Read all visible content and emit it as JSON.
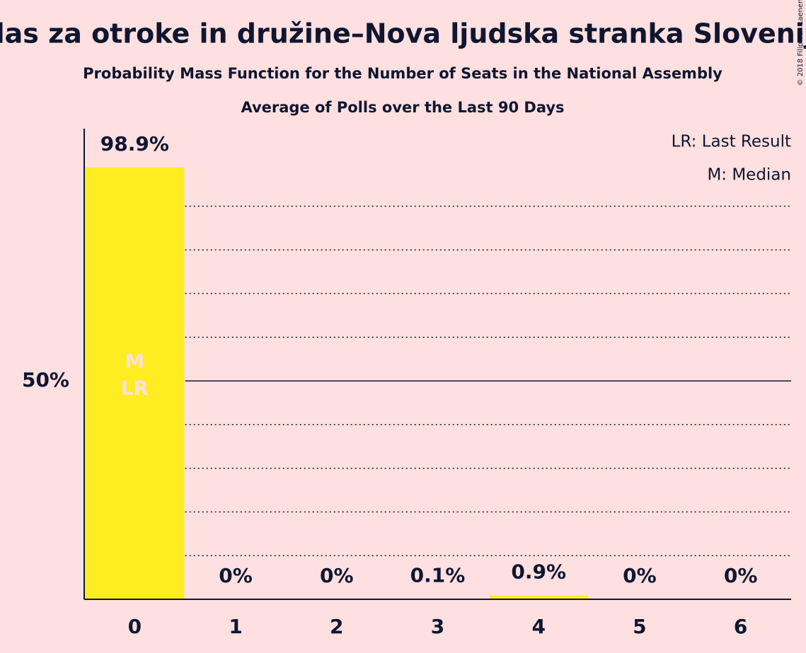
{
  "chart_data": {
    "type": "bar",
    "title": "Glas za otroke in družine–Nova ljudska stranka Slovenije",
    "subtitle": "Probability Mass Function for the Number of Seats in the National Assembly",
    "subtitle2": "Average of Polls over the Last 90 Days",
    "categories": [
      "0",
      "1",
      "2",
      "3",
      "4",
      "5",
      "6"
    ],
    "values": [
      98.9,
      0,
      0,
      0.1,
      0.9,
      0,
      0
    ],
    "value_labels": [
      "98.9%",
      "0%",
      "0%",
      "0.1%",
      "0.9%",
      "0%",
      "0%"
    ],
    "color": "#ffed22",
    "ylim": [
      0,
      100
    ],
    "yticks": [
      {
        "value": 50,
        "label": "50%"
      }
    ],
    "minor_yticks": [
      10,
      20,
      30,
      40,
      60,
      70,
      80,
      90
    ],
    "grid": true,
    "median": 0,
    "median_label": "M",
    "last_result": 0,
    "last_result_label": "LR",
    "legend": [
      "LR: Last Result",
      "M: Median"
    ],
    "legend_position": "top-right",
    "copyright": "© 2018 Filip van Laenen"
  }
}
